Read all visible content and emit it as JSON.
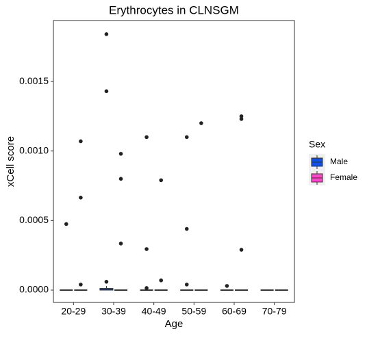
{
  "chart_data": {
    "type": "boxplot",
    "title": "Erythrocytes in CLNSGM",
    "x_label": "Age",
    "y_label": "xCell score",
    "categories": [
      "20-29",
      "30-39",
      "40-49",
      "50-59",
      "60-69",
      "70-79"
    ],
    "ylim": [
      -8.85e-05,
      0.001938
    ],
    "yticks": [
      {
        "value": 0,
        "label": "0.0000"
      },
      {
        "value": 0.0005,
        "label": "0.0005"
      },
      {
        "value": 0.001,
        "label": "0.0010"
      },
      {
        "value": 0.0015,
        "label": "0.0015"
      }
    ],
    "legend_title": "Sex",
    "legend_position": "right",
    "series": [
      {
        "name": "Male",
        "color": "#0d4fe8",
        "boxes": [
          {
            "min": 0,
            "q1": 0,
            "median": 0,
            "q3": 0,
            "max": 0
          },
          {
            "min": 0,
            "q1": 0,
            "median": 3e-06,
            "q3": 1.2e-05,
            "max": 3e-05
          },
          {
            "min": 0,
            "q1": 0,
            "median": 0,
            "q3": 0,
            "max": 0
          },
          {
            "min": 0,
            "q1": 0,
            "median": 0,
            "q3": 0,
            "max": 0
          },
          {
            "min": 0,
            "q1": 0,
            "median": 0,
            "q3": 0,
            "max": 0
          },
          {
            "min": 0,
            "q1": 0,
            "median": 0,
            "q3": 0,
            "max": 0
          }
        ],
        "outliers": [
          [
            0.000475
          ],
          [
            0.00184,
            0.00143,
            6e-05
          ],
          [
            0.0011,
            0.000295,
            1.5e-05
          ],
          [
            0.0011,
            0.00044,
            4e-05
          ],
          [
            3e-05
          ],
          []
        ]
      },
      {
        "name": "Female",
        "color": "#ff45c8",
        "boxes": [
          {
            "min": 0,
            "q1": 0,
            "median": 0,
            "q3": 0,
            "max": 0
          },
          {
            "min": 0,
            "q1": 0,
            "median": 0,
            "q3": 0,
            "max": 0
          },
          {
            "min": 0,
            "q1": 0,
            "median": 0,
            "q3": 0,
            "max": 0
          },
          {
            "min": 0,
            "q1": 0,
            "median": 0,
            "q3": 0,
            "max": 0
          },
          {
            "min": 0,
            "q1": 0,
            "median": 0,
            "q3": 0,
            "max": 0
          },
          {
            "min": 0,
            "q1": 0,
            "median": 0,
            "q3": 0,
            "max": 0
          }
        ],
        "outliers": [
          [
            0.00107,
            0.000665,
            4e-05
          ],
          [
            0.00098,
            0.0008,
            0.000335
          ],
          [
            0.00079,
            7e-05
          ],
          [
            0.0012
          ],
          [
            0.00125,
            0.00123,
            0.00029
          ],
          []
        ]
      }
    ]
  }
}
